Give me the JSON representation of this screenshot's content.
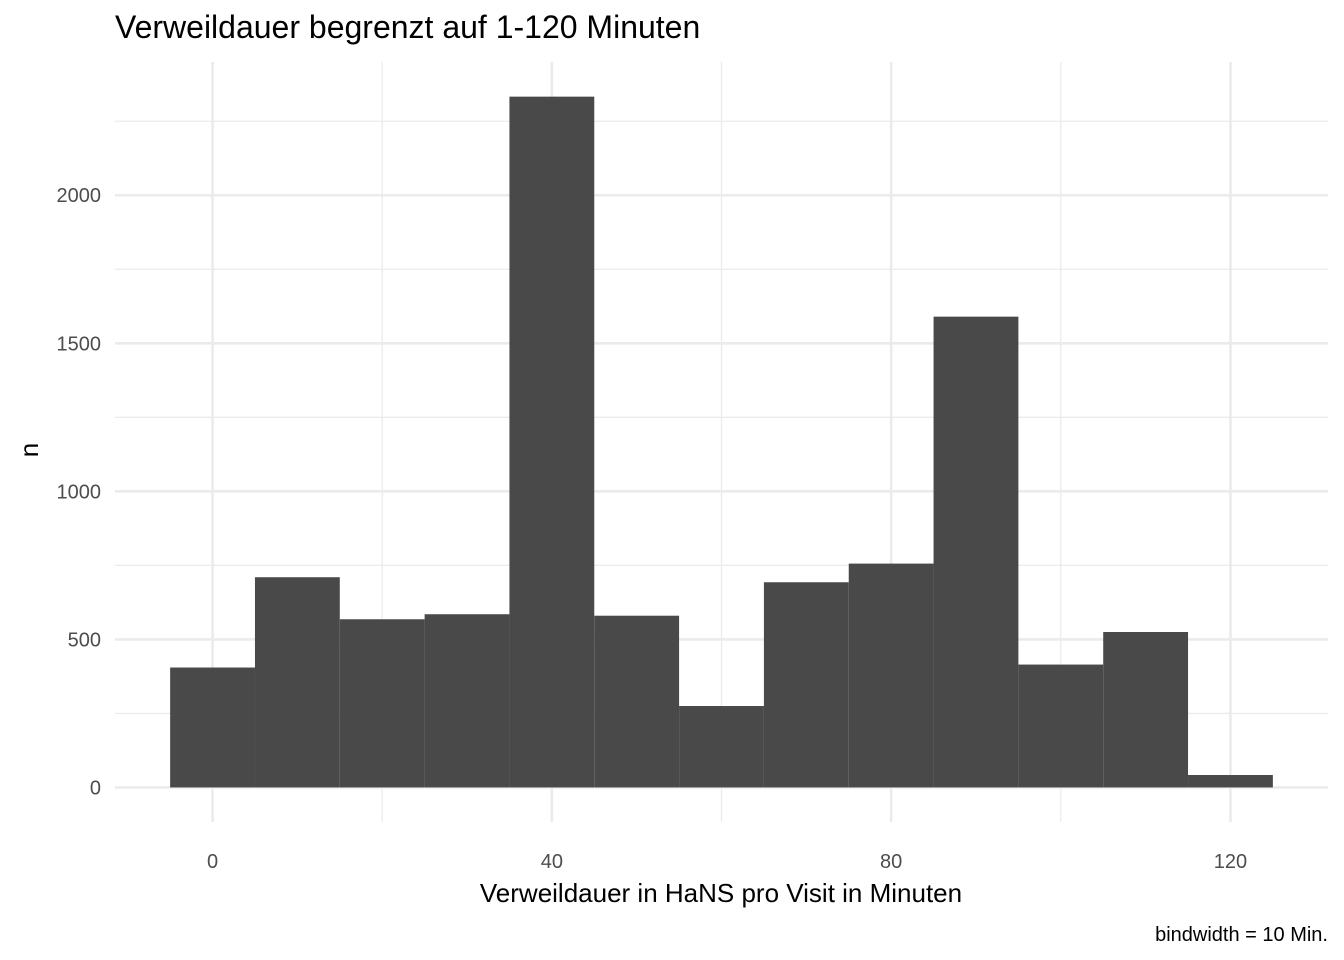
{
  "chart_data": {
    "type": "bar",
    "title": "Verweildauer begrenzt auf 1-120 Minuten",
    "xlabel": "Verweildauer in HaNS pro Visit in Minuten",
    "ylabel": "n",
    "caption": "bindwidth = 10 Min.",
    "bin_width": 10,
    "bins": [
      {
        "x": 0,
        "value": 405
      },
      {
        "x": 10,
        "value": 710
      },
      {
        "x": 20,
        "value": 568
      },
      {
        "x": 30,
        "value": 585
      },
      {
        "x": 40,
        "value": 2333
      },
      {
        "x": 50,
        "value": 580
      },
      {
        "x": 60,
        "value": 275
      },
      {
        "x": 70,
        "value": 693
      },
      {
        "x": 80,
        "value": 756
      },
      {
        "x": 90,
        "value": 1590
      },
      {
        "x": 100,
        "value": 415
      },
      {
        "x": 110,
        "value": 525
      },
      {
        "x": 120,
        "value": 42
      }
    ],
    "xlim": [
      -11.5,
      131.5
    ],
    "ylim": [
      -116.7,
      2450
    ],
    "x_ticks": [
      0,
      40,
      80,
      120
    ],
    "x_tick_labels": [
      "0",
      "40",
      "80",
      "120"
    ],
    "y_ticks": [
      0,
      500,
      1000,
      1500,
      2000
    ],
    "y_tick_labels": [
      "0",
      "500",
      "1000",
      "1500",
      "2000"
    ],
    "grid": true,
    "bar_color": "#494949",
    "grid_color": "#ebebeb"
  }
}
